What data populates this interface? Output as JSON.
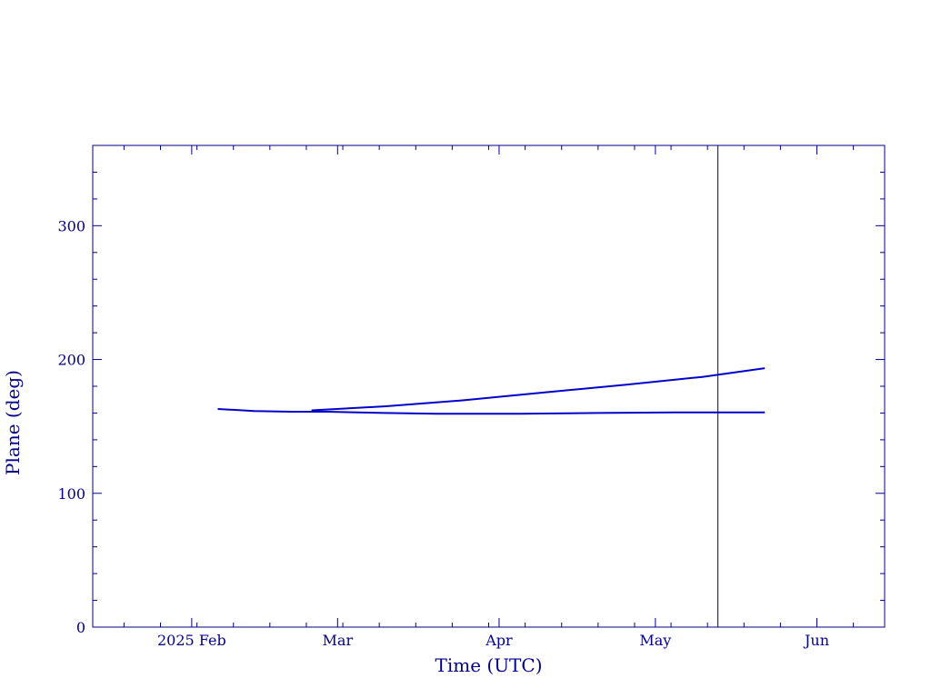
{
  "chart_data": {
    "type": "line",
    "title": "",
    "xlabel": "Time (UTC)",
    "ylabel": "Plane (deg)",
    "x_axis": {
      "range": [
        "2025-01-13",
        "2025-06-14"
      ],
      "major_ticks": [
        {
          "date": "2025-02-01",
          "label": "2025 Feb"
        },
        {
          "date": "2025-03-01",
          "label": "Mar"
        },
        {
          "date": "2025-04-01",
          "label": "Apr"
        },
        {
          "date": "2025-05-01",
          "label": "May"
        },
        {
          "date": "2025-06-01",
          "label": "Jun"
        }
      ]
    },
    "y_axis": {
      "range": [
        0,
        360
      ],
      "major_ticks": [
        0,
        100,
        200,
        300
      ],
      "minor_step": 20
    },
    "series": [
      {
        "x": [
          "2025-02-06",
          "2025-02-13",
          "2025-02-20",
          "2025-02-27",
          "2025-03-10",
          "2025-03-20",
          "2025-04-05",
          "2025-04-20",
          "2025-05-05",
          "2025-05-15",
          "2025-05-22"
        ],
        "y": [
          163,
          161.5,
          161,
          161,
          160,
          159.5,
          159.5,
          160,
          160.5,
          160.5,
          160.5
        ]
      },
      {
        "x": [
          "2025-02-24",
          "2025-03-10",
          "2025-03-25",
          "2025-04-10",
          "2025-04-25",
          "2025-05-10",
          "2025-05-22"
        ],
        "y": [
          162,
          165,
          169.5,
          175.5,
          181,
          187,
          193.5
        ]
      }
    ],
    "markers": [
      {
        "type": "vertical_line",
        "x": "2025-05-13"
      }
    ],
    "grid": false,
    "legend": "none",
    "colors": {
      "axis": "#00008b",
      "line": "#0000cc",
      "text": "#00008b"
    }
  }
}
